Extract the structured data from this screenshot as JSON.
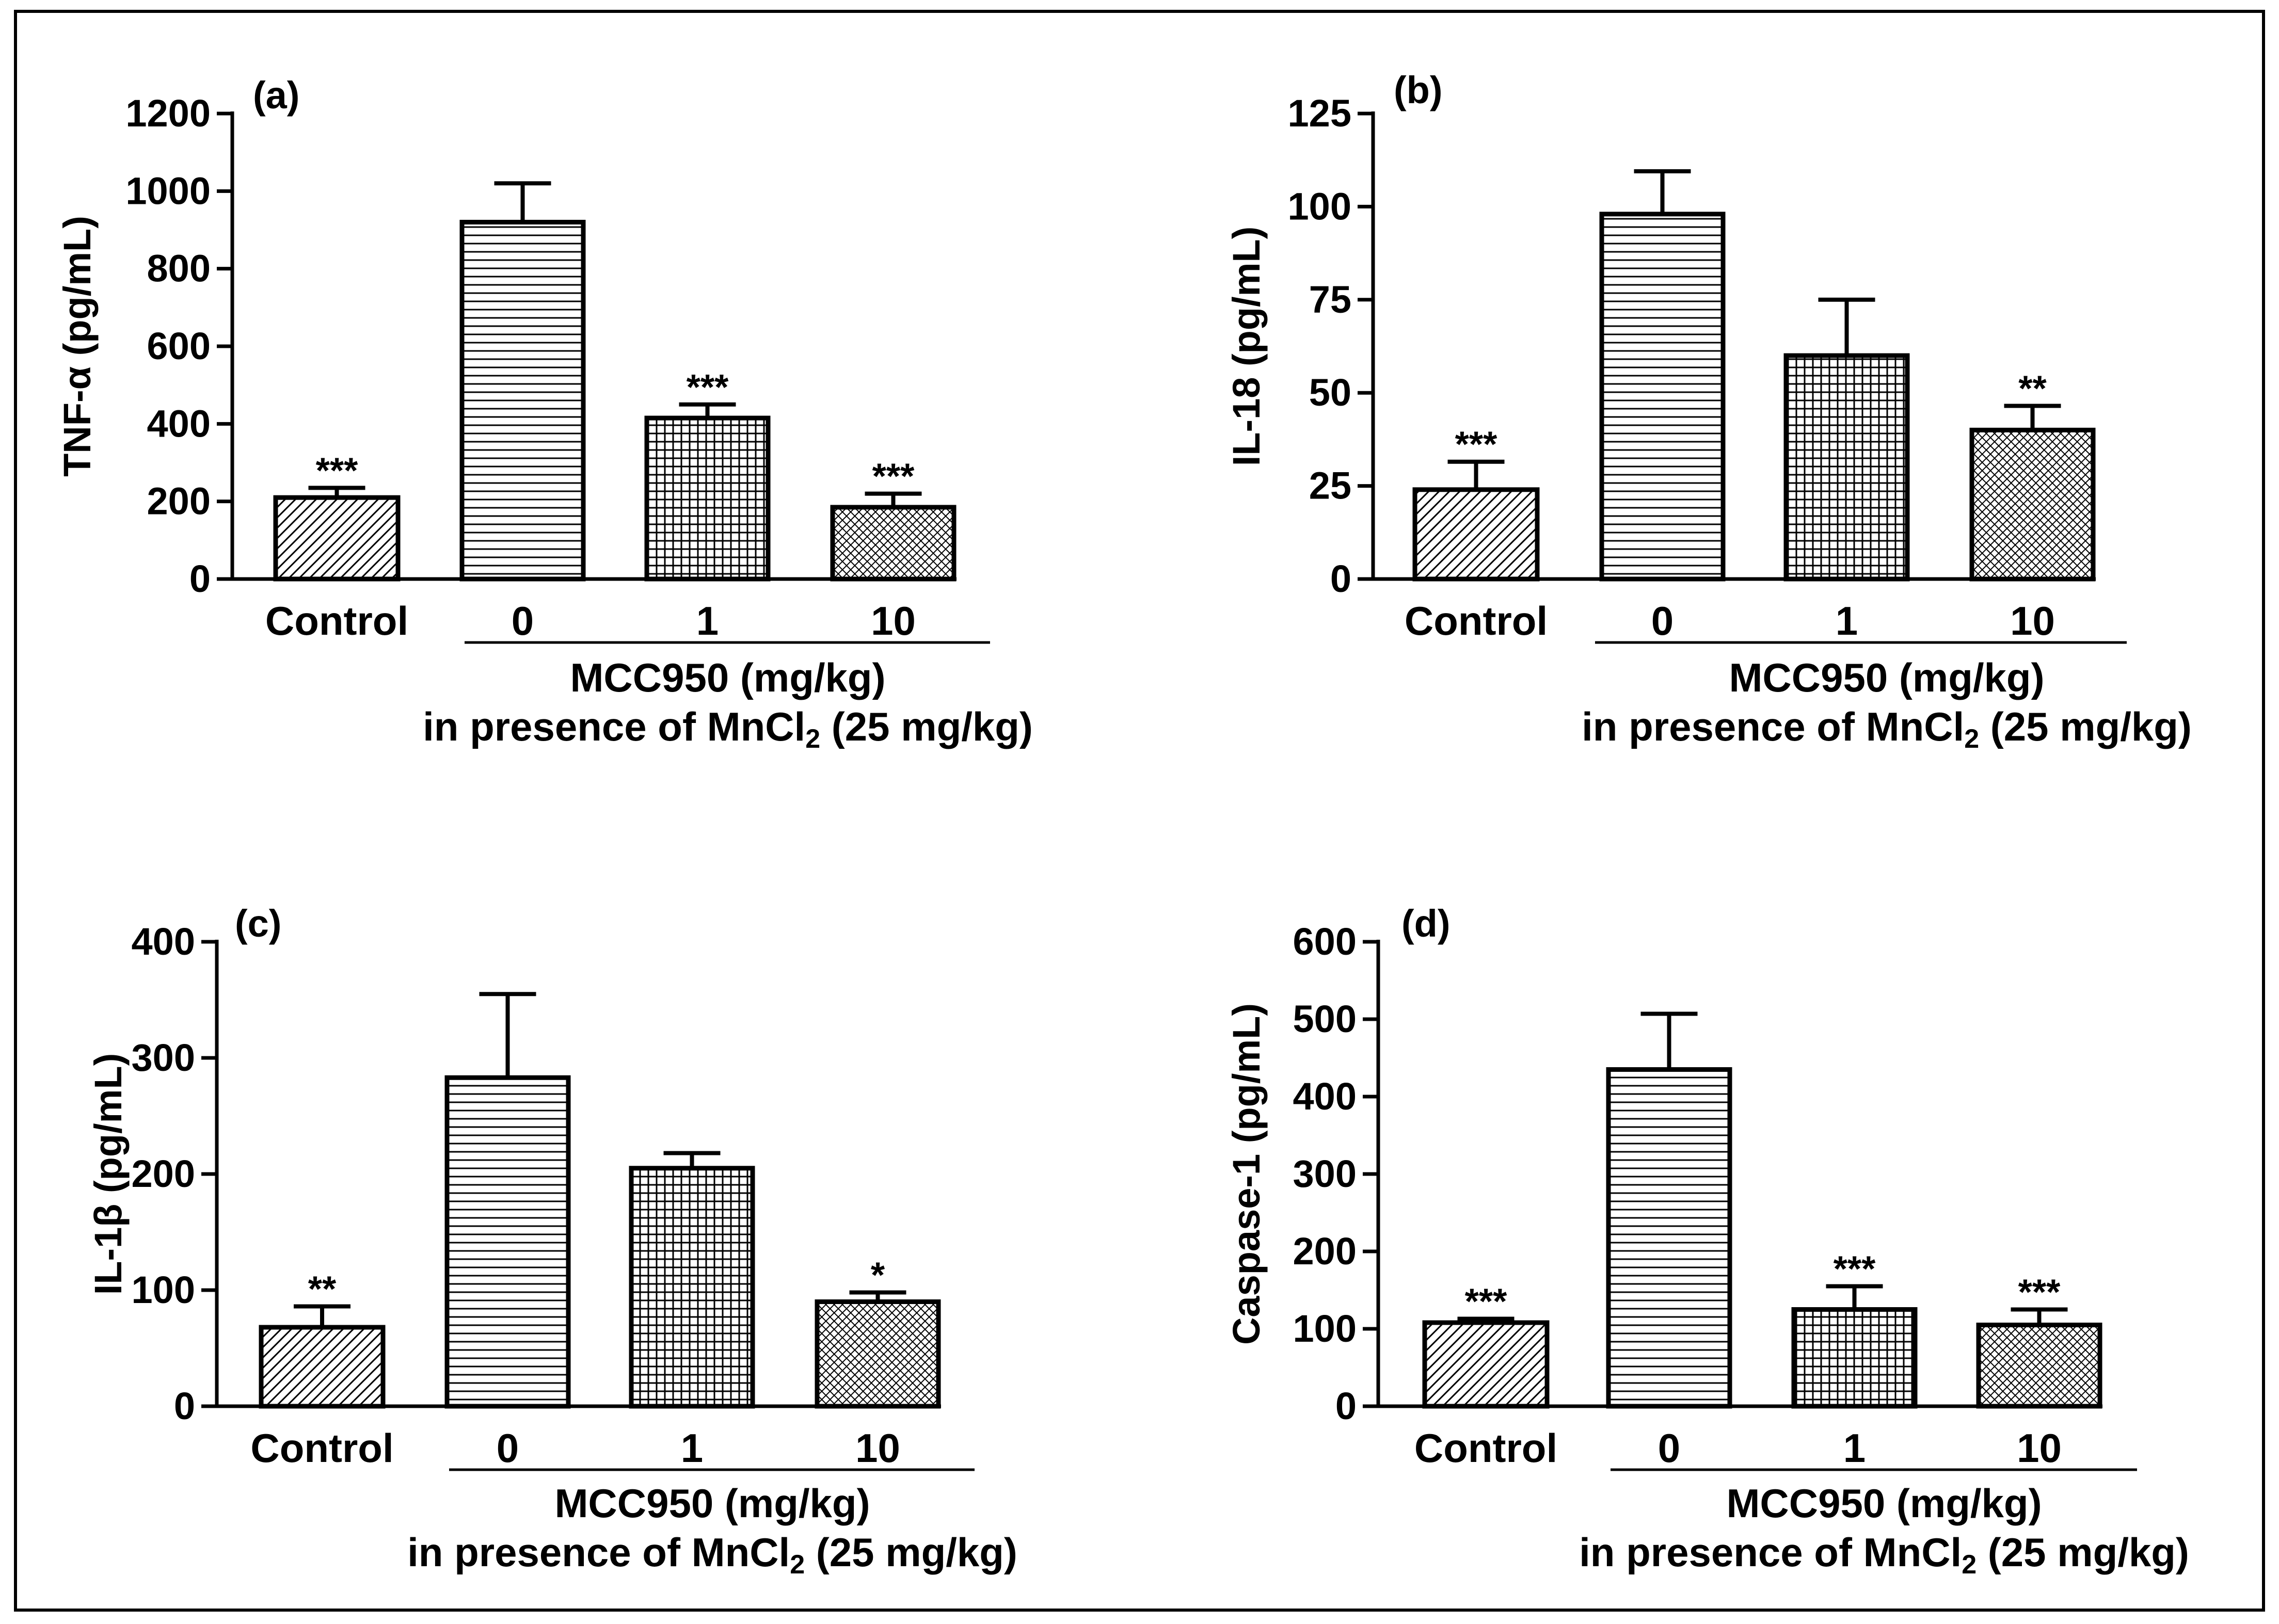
{
  "chart_data": [
    {
      "type": "bar",
      "panel_label": "(a)",
      "ylabel": "TNF-α (pg/mL)",
      "categories": [
        "Control",
        "0",
        "1",
        "10"
      ],
      "values": [
        210,
        920,
        415,
        185
      ],
      "errors": [
        25,
        100,
        35,
        35
      ],
      "significance": [
        "***",
        "",
        "***",
        "***"
      ],
      "patterns": [
        "diag",
        "hlines",
        "grid",
        "crosshatch"
      ],
      "ylim": [
        0,
        1200
      ],
      "yticks": [
        0,
        200,
        400,
        600,
        800,
        1000,
        1200
      ],
      "group_label_line1": "MCC950 (mg/kg)",
      "group_label_line2_prefix": "in presence of MnCl",
      "group_label_subscript": "2",
      "group_label_line2_suffix": " (25 mg/kg)",
      "grid": false
    },
    {
      "type": "bar",
      "panel_label": "(b)",
      "ylabel": "IL-18 (pg/mL)",
      "categories": [
        "Control",
        "0",
        "1",
        "10"
      ],
      "values": [
        24,
        98,
        60,
        40
      ],
      "errors": [
        7.5,
        11.5,
        15,
        6.5
      ],
      "significance": [
        "***",
        "",
        "",
        "**"
      ],
      "patterns": [
        "diag",
        "hlines",
        "grid",
        "crosshatch"
      ],
      "ylim": [
        0,
        125
      ],
      "yticks": [
        0,
        25,
        50,
        75,
        100,
        125
      ],
      "group_label_line1": "MCC950 (mg/kg)",
      "group_label_line2_prefix": "in presence of MnCl",
      "group_label_subscript": "2",
      "group_label_line2_suffix": " (25 mg/kg)",
      "grid": false
    },
    {
      "type": "bar",
      "panel_label": "(c)",
      "ylabel": "IL-1β (pg/mL)",
      "categories": [
        "Control",
        "0",
        "1",
        "10"
      ],
      "values": [
        68,
        283,
        205,
        90
      ],
      "errors": [
        18,
        72,
        13,
        8
      ],
      "significance": [
        "**",
        "",
        "",
        "*"
      ],
      "patterns": [
        "diag",
        "hlines",
        "grid",
        "crosshatch"
      ],
      "ylim": [
        0,
        400
      ],
      "yticks": [
        0,
        100,
        200,
        300,
        400
      ],
      "group_label_line1": "MCC950 (mg/kg)",
      "group_label_line2_prefix": "in presence of MnCl",
      "group_label_subscript": "2",
      "group_label_line2_suffix": " (25 mg/kg)",
      "grid": false
    },
    {
      "type": "bar",
      "panel_label": "(d)",
      "ylabel": "Caspase-1 (pg/mL)",
      "categories": [
        "Control",
        "0",
        "1",
        "10"
      ],
      "values": [
        108,
        435,
        125,
        105
      ],
      "errors": [
        5,
        72,
        30,
        20
      ],
      "significance": [
        "***",
        "",
        "***",
        "***"
      ],
      "patterns": [
        "diag",
        "hlines",
        "grid",
        "crosshatch"
      ],
      "ylim": [
        0,
        600
      ],
      "yticks": [
        0,
        100,
        200,
        300,
        400,
        500,
        600
      ],
      "group_label_line1": "MCC950 (mg/kg)",
      "group_label_line2_prefix": "in presence of MnCl",
      "group_label_subscript": "2",
      "group_label_line2_suffix": " (25 mg/kg)",
      "grid": false
    }
  ]
}
